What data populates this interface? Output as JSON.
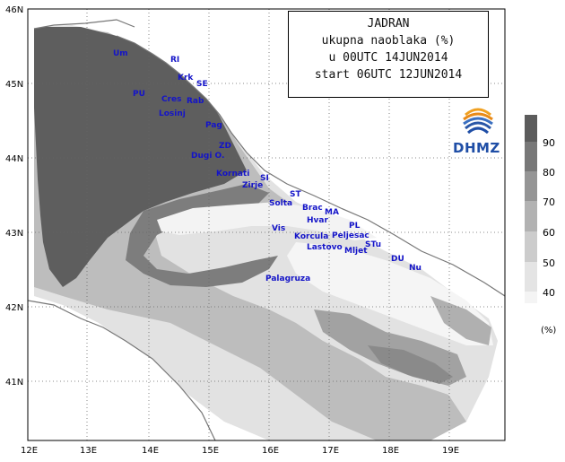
{
  "map": {
    "region": "JADRAN",
    "latitude_labels": [
      "46N",
      "45N",
      "44N",
      "43N",
      "42N",
      "41N"
    ],
    "longitude_labels": [
      "12E",
      "13E",
      "14E",
      "15E",
      "16E",
      "17E",
      "18E",
      "19E"
    ],
    "places": [
      "Um",
      "RI",
      "Krk",
      "SE",
      "PU",
      "Cres",
      "Rab",
      "Losinj",
      "Pag",
      "ZD",
      "Dugi O.",
      "Kornati",
      "SI",
      "Zirje",
      "ST",
      "Solta",
      "Brac",
      "MA",
      "Hvar",
      "PL",
      "Vis",
      "Korcula",
      "Peljesac",
      "Lastovo",
      "Mljet",
      "STu",
      "DU",
      "Nu",
      "Palagruza"
    ]
  },
  "title": {
    "line1": "JADRAN",
    "line2": "ukupna naoblaka (%)",
    "line3": "u 00UTC 14JUN2014",
    "line4": "start 06UTC 12JUN2014"
  },
  "logo": {
    "text": "DHMZ",
    "icon": "dhmz-logo-icon"
  },
  "legend": {
    "levels": [
      "90",
      "80",
      "70",
      "60",
      "50",
      "40"
    ],
    "unit": "(%)",
    "colors": [
      "#5c5c5c",
      "#787878",
      "#959595",
      "#b2b2b2",
      "#cccccc",
      "#e4e4e4",
      "#f4f4f4"
    ]
  }
}
